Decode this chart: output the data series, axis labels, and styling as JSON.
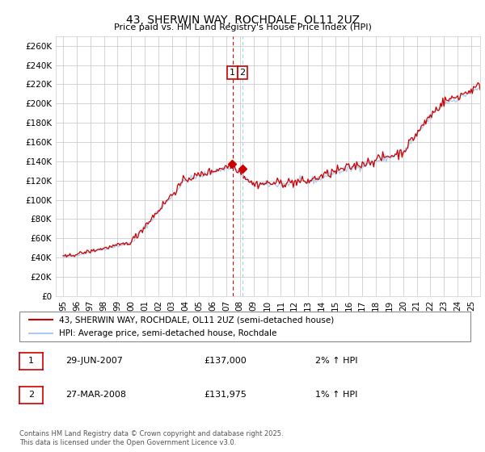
{
  "title": "43, SHERWIN WAY, ROCHDALE, OL11 2UZ",
  "subtitle": "Price paid vs. HM Land Registry's House Price Index (HPI)",
  "ylabel_ticks": [
    0,
    20000,
    40000,
    60000,
    80000,
    100000,
    120000,
    140000,
    160000,
    180000,
    200000,
    220000,
    240000,
    260000
  ],
  "ylim": [
    0,
    270000
  ],
  "xlim_start": 1994.5,
  "xlim_end": 2025.7,
  "line1_color": "#cc0000",
  "line2_color": "#aaccee",
  "vline1_x": 2007.49,
  "vline2_x": 2008.22,
  "vline1_color": "#dd0000",
  "vline2_color": "#aaccee",
  "ann1_x": 2007.49,
  "ann2_x": 2008.22,
  "ann_y": 232000,
  "legend_label1": "43, SHERWIN WAY, ROCHDALE, OL11 2UZ (semi-detached house)",
  "legend_label2": "HPI: Average price, semi-detached house, Rochdale",
  "table_rows": [
    {
      "num": "1",
      "date": "29-JUN-2007",
      "price": "£137,000",
      "hpi": "2% ↑ HPI"
    },
    {
      "num": "2",
      "date": "27-MAR-2008",
      "price": "£131,975",
      "hpi": "1% ↑ HPI"
    }
  ],
  "footer": "Contains HM Land Registry data © Crown copyright and database right 2025.\nThis data is licensed under the Open Government Licence v3.0.",
  "background_color": "#ffffff",
  "grid_color": "#cccccc"
}
